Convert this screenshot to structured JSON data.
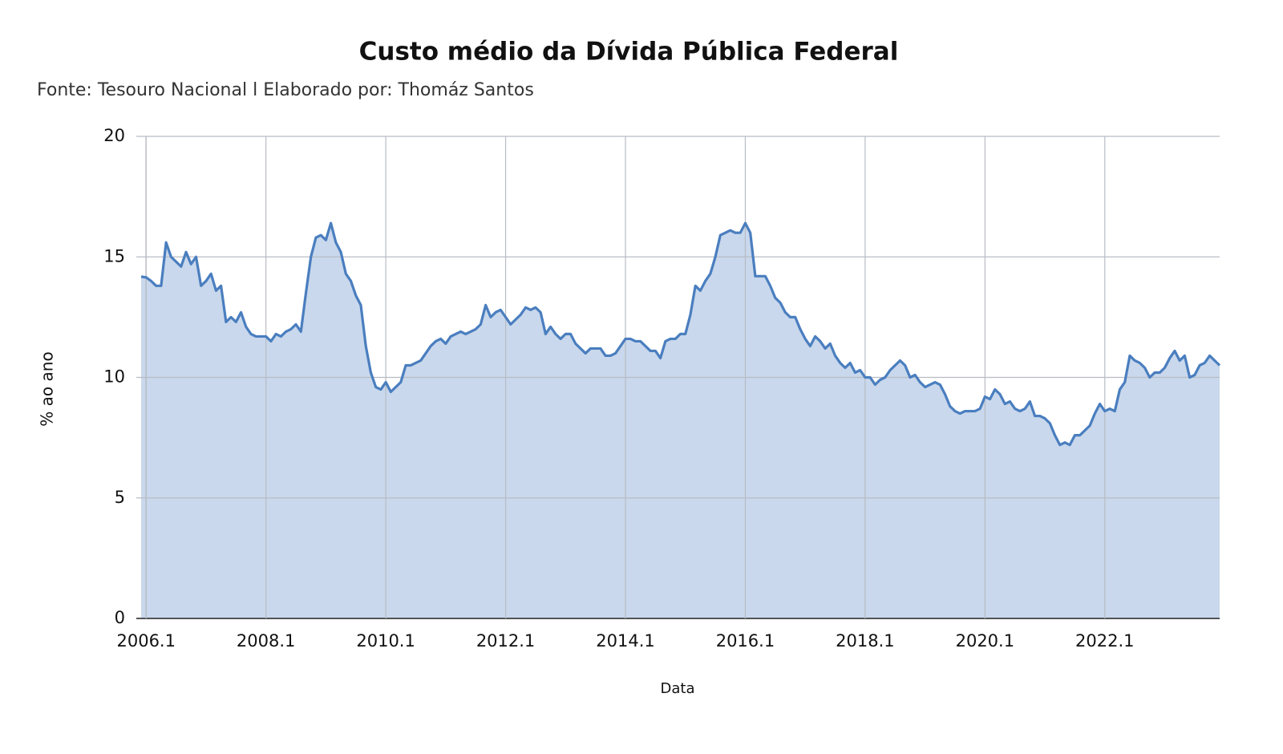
{
  "chart_data": {
    "type": "area",
    "title": "Custo médio da Dívida Pública Federal",
    "subtitle": "Fonte: Tesouro Nacional l Elaborado por: Thomáz Santos",
    "x_label": "Data",
    "y_label": "% ao ano",
    "color": "#4a7ebf",
    "fill": "#c9d8ec",
    "grid": true,
    "ylim": [
      0,
      20
    ],
    "yticks": [
      0,
      5,
      10,
      15,
      20
    ],
    "categories": [
      null,
      "2006.1",
      null,
      null,
      null,
      null,
      null,
      null,
      null,
      null,
      null,
      null,
      null,
      null,
      null,
      null,
      null,
      null,
      null,
      null,
      null,
      null,
      null,
      null,
      null,
      "2008.1",
      null,
      null,
      null,
      null,
      null,
      null,
      null,
      null,
      null,
      null,
      null,
      null,
      null,
      null,
      null,
      null,
      null,
      null,
      null,
      null,
      null,
      null,
      null,
      "2010.1",
      null,
      null,
      null,
      null,
      null,
      null,
      null,
      null,
      null,
      null,
      null,
      null,
      null,
      null,
      null,
      null,
      null,
      null,
      null,
      null,
      null,
      null,
      null,
      "2012.1",
      null,
      null,
      null,
      null,
      null,
      null,
      null,
      null,
      null,
      null,
      null,
      null,
      null,
      null,
      null,
      null,
      null,
      null,
      null,
      null,
      null,
      null,
      null,
      "2014.1",
      null,
      null,
      null,
      null,
      null,
      null,
      null,
      null,
      null,
      null,
      null,
      null,
      null,
      null,
      null,
      null,
      null,
      null,
      null,
      null,
      null,
      null,
      null,
      "2016.1",
      null,
      null,
      null,
      null,
      null,
      null,
      null,
      null,
      null,
      null,
      null,
      null,
      null,
      null,
      null,
      null,
      null,
      null,
      null,
      null,
      null,
      null,
      null,
      "2018.1",
      null,
      null,
      null,
      null,
      null,
      null,
      null,
      null,
      null,
      null,
      null,
      null,
      null,
      null,
      null,
      null,
      null,
      null,
      null,
      null,
      null,
      null,
      null,
      "2020.1",
      null,
      null,
      null,
      null,
      null,
      null,
      null,
      null,
      null,
      null,
      null,
      null,
      null,
      null,
      null,
      null,
      null,
      null,
      null,
      null,
      null,
      null,
      null,
      "2022.1",
      null,
      null,
      null,
      null,
      null,
      null,
      null,
      null,
      null,
      null,
      null,
      null,
      null,
      null,
      null,
      null,
      null,
      null,
      null,
      null,
      null,
      null,
      null
    ],
    "values": [
      14.18,
      14.15,
      14.0,
      13.8,
      13.8,
      15.6,
      15.0,
      14.8,
      14.6,
      15.2,
      14.7,
      15.0,
      13.8,
      14.0,
      14.3,
      13.6,
      13.8,
      12.3,
      12.5,
      12.3,
      12.7,
      12.1,
      11.8,
      11.7,
      11.7,
      11.7,
      11.5,
      11.8,
      11.7,
      11.9,
      12.0,
      12.2,
      11.9,
      13.5,
      15.0,
      15.8,
      15.9,
      15.7,
      16.4,
      15.6,
      15.2,
      14.3,
      14.0,
      13.4,
      13.0,
      11.3,
      10.2,
      9.6,
      9.5,
      9.8,
      9.4,
      9.6,
      9.8,
      10.5,
      10.5,
      10.6,
      10.7,
      11.0,
      11.3,
      11.5,
      11.6,
      11.4,
      11.7,
      11.8,
      11.9,
      11.8,
      11.9,
      12.0,
      12.2,
      13.0,
      12.5,
      12.7,
      12.8,
      12.5,
      12.2,
      12.4,
      12.6,
      12.9,
      12.8,
      12.9,
      12.7,
      11.8,
      12.1,
      11.8,
      11.6,
      11.8,
      11.8,
      11.4,
      11.2,
      11.0,
      11.2,
      11.2,
      11.2,
      10.9,
      10.9,
      11.0,
      11.3,
      11.6,
      11.6,
      11.5,
      11.5,
      11.3,
      11.1,
      11.1,
      10.8,
      11.5,
      11.6,
      11.6,
      11.8,
      11.8,
      12.6,
      13.8,
      13.6,
      14.0,
      14.3,
      15.0,
      15.9,
      16.0,
      16.1,
      16.0,
      16.0,
      16.4,
      16.0,
      14.2,
      14.2,
      14.2,
      13.8,
      13.3,
      13.1,
      12.7,
      12.5,
      12.5,
      12.0,
      11.6,
      11.3,
      11.7,
      11.5,
      11.2,
      11.4,
      10.9,
      10.6,
      10.4,
      10.6,
      10.2,
      10.3,
      10.0,
      10.0,
      9.7,
      9.9,
      10.0,
      10.3,
      10.5,
      10.7,
      10.5,
      10.0,
      10.1,
      9.8,
      9.6,
      9.7,
      9.8,
      9.7,
      9.3,
      8.8,
      8.6,
      8.5,
      8.6,
      8.6,
      8.6,
      8.7,
      9.2,
      9.1,
      9.5,
      9.3,
      8.9,
      9.0,
      8.7,
      8.6,
      8.7,
      9.0,
      8.4,
      8.4,
      8.3,
      8.1,
      7.6,
      7.2,
      7.3,
      7.2,
      7.6,
      7.6,
      7.8,
      8.0,
      8.5,
      8.9,
      8.6,
      8.7,
      8.6,
      9.5,
      9.8,
      10.9,
      10.7,
      10.6,
      10.4,
      10.0,
      10.2,
      10.2,
      10.4,
      10.8,
      11.1,
      10.7,
      10.9,
      10.0,
      10.1,
      10.5,
      10.6,
      10.9,
      10.7,
      10.5
    ]
  }
}
